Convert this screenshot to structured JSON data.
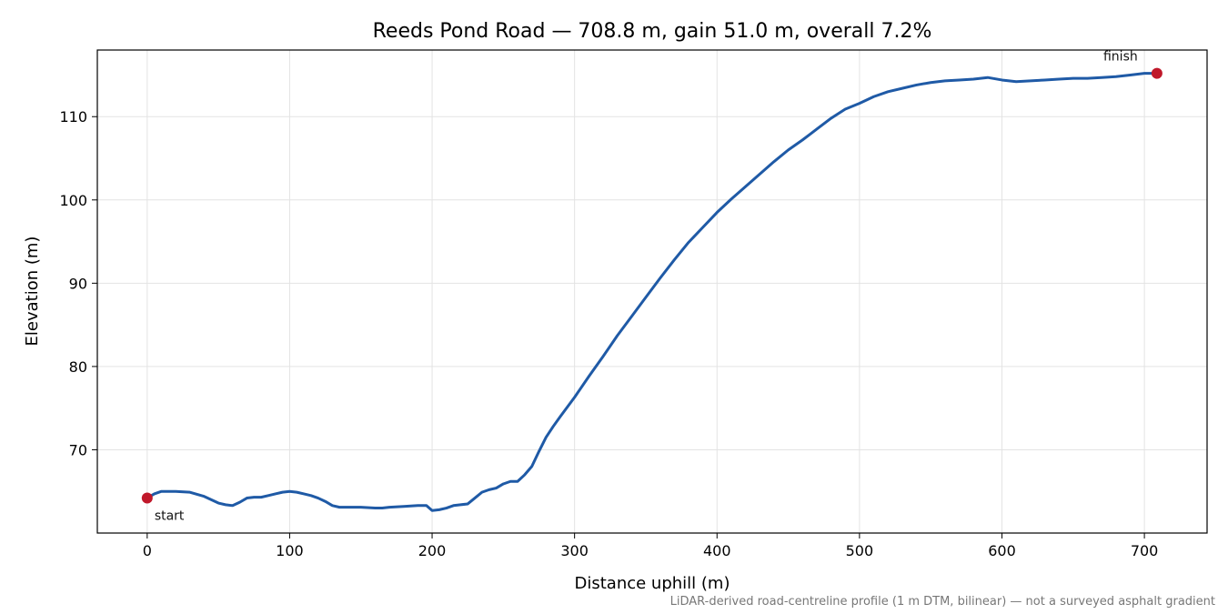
{
  "chart_data": {
    "type": "line",
    "title": "Reeds Pond Road — 708.8 m, gain 51.0 m, overall 7.2%",
    "xlabel": "Distance uphill (m)",
    "ylabel": "Elevation (m)",
    "xlim": [
      -35,
      744
    ],
    "ylim": [
      60,
      118
    ],
    "xticks": [
      0,
      100,
      200,
      300,
      400,
      500,
      600,
      700
    ],
    "yticks": [
      70,
      80,
      90,
      100,
      110
    ],
    "grid": true,
    "line_color": "#1f5aa6",
    "marker_color": "#c0182a",
    "series": [
      {
        "x": [
          0,
          5,
          10,
          15,
          20,
          30,
          40,
          45,
          50,
          55,
          60,
          65,
          70,
          75,
          80,
          85,
          90,
          95,
          100,
          105,
          110,
          115,
          120,
          125,
          130,
          135,
          140,
          150,
          160,
          165,
          170,
          180,
          190,
          196,
          200,
          205,
          210,
          215,
          220,
          225,
          230,
          235,
          240,
          245,
          250,
          255,
          260,
          265,
          270,
          275,
          280,
          285,
          290,
          300,
          310,
          320,
          330,
          340,
          350,
          360,
          370,
          380,
          390,
          400,
          410,
          420,
          430,
          440,
          450,
          460,
          470,
          480,
          490,
          500,
          510,
          520,
          530,
          540,
          550,
          560,
          570,
          580,
          590,
          600,
          610,
          620,
          630,
          640,
          650,
          660,
          670,
          680,
          690,
          700,
          708.8
        ],
        "y": [
          64.2,
          64.7,
          65.0,
          65.0,
          65.0,
          64.9,
          64.4,
          64.0,
          63.6,
          63.4,
          63.3,
          63.7,
          64.2,
          64.3,
          64.3,
          64.5,
          64.7,
          64.9,
          65.0,
          64.9,
          64.7,
          64.5,
          64.2,
          63.8,
          63.3,
          63.1,
          63.1,
          63.1,
          63.0,
          63.0,
          63.1,
          63.2,
          63.3,
          63.3,
          62.7,
          62.8,
          63.0,
          63.3,
          63.4,
          63.5,
          64.2,
          64.9,
          65.2,
          65.4,
          65.9,
          66.2,
          66.2,
          67.0,
          68.0,
          69.8,
          71.5,
          72.8,
          74.0,
          76.3,
          78.8,
          81.2,
          83.7,
          86.0,
          88.3,
          90.6,
          92.8,
          94.9,
          96.7,
          98.5,
          100.1,
          101.6,
          103.1,
          104.6,
          106.0,
          107.2,
          108.5,
          109.8,
          110.9,
          111.6,
          112.4,
          113.0,
          113.4,
          113.8,
          114.1,
          114.3,
          114.4,
          114.5,
          114.7,
          114.4,
          114.2,
          114.3,
          114.4,
          114.5,
          114.6,
          114.6,
          114.7,
          114.8,
          115.0,
          115.2,
          115.2
        ]
      }
    ],
    "annotations": [
      {
        "text": "start",
        "x": 0,
        "y": 64.2
      },
      {
        "text": "finish",
        "x": 708.8,
        "y": 115.2
      }
    ],
    "footnote": "LiDAR-derived road-centreline profile (1 m DTM, bilinear) — not a surveyed asphalt gradient"
  }
}
